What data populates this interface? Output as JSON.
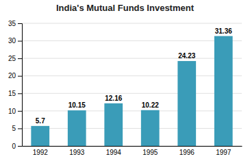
{
  "chart_data": {
    "type": "bar",
    "title": "India's Mutual Funds Investment",
    "categories": [
      "1992",
      "1993",
      "1994",
      "1995",
      "1996",
      "1997"
    ],
    "values": [
      5.7,
      10.15,
      12.16,
      10.22,
      24.23,
      31.36
    ],
    "color": "#3a9cb8",
    "ylim": [
      0,
      35
    ],
    "yticks": [
      0,
      5,
      10,
      15,
      20,
      25,
      30,
      35
    ],
    "grid": true,
    "data_labels": true
  }
}
